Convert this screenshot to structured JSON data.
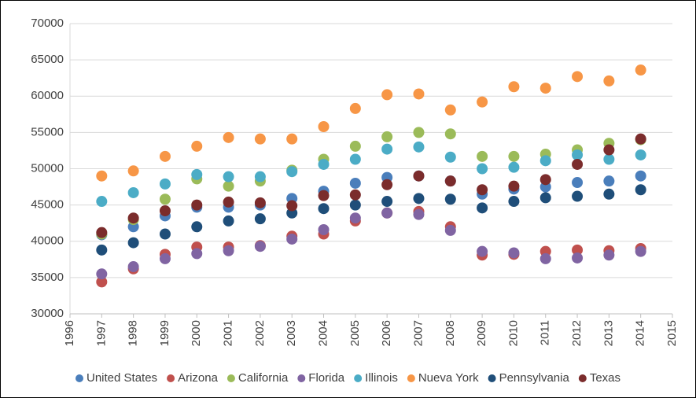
{
  "chart_data": {
    "type": "scatter",
    "x": [
      1997,
      1998,
      1999,
      2000,
      2001,
      2002,
      2003,
      2004,
      2005,
      2006,
      2007,
      2008,
      2009,
      2010,
      2011,
      2012,
      2013,
      2014
    ],
    "xlim": [
      1996,
      2015
    ],
    "xticks": [
      1996,
      1997,
      1998,
      1999,
      2000,
      2001,
      2002,
      2003,
      2004,
      2005,
      2006,
      2007,
      2008,
      2009,
      2010,
      2011,
      2012,
      2013,
      2014,
      2015
    ],
    "ylim": [
      30000,
      70000
    ],
    "yticks": [
      30000,
      35000,
      40000,
      45000,
      50000,
      55000,
      60000,
      65000,
      70000
    ],
    "grid": true,
    "legend": "bottom",
    "series": [
      {
        "name": "United States",
        "color": "#4a7ebb",
        "values": [
          40900,
          42000,
          43500,
          44700,
          44700,
          45000,
          45900,
          46900,
          48000,
          48800,
          49000,
          48300,
          46500,
          47200,
          47500,
          48100,
          48300,
          49000
        ]
      },
      {
        "name": "Arizona",
        "color": "#c0504d",
        "values": [
          34400,
          36200,
          38200,
          39200,
          39200,
          39400,
          40700,
          41000,
          42800,
          43900,
          44100,
          42000,
          38100,
          38200,
          38600,
          38800,
          38700,
          39000
        ]
      },
      {
        "name": "California",
        "color": "#9bbb59",
        "values": [
          41000,
          43000,
          45800,
          48600,
          47600,
          48300,
          49800,
          51300,
          53100,
          54400,
          55000,
          54800,
          51700,
          51700,
          52000,
          52600,
          53500,
          54000
        ]
      },
      {
        "name": "Florida",
        "color": "#8064a2",
        "values": [
          35500,
          36500,
          37600,
          38300,
          38700,
          39300,
          40300,
          41600,
          43200,
          43900,
          43700,
          41500,
          38600,
          38400,
          37600,
          37700,
          38100,
          38600
        ]
      },
      {
        "name": "Illinois",
        "color": "#4bacc6",
        "values": [
          45500,
          46700,
          47900,
          49200,
          48900,
          48900,
          49600,
          50600,
          51300,
          52700,
          53000,
          51600,
          50000,
          50200,
          51100,
          51900,
          51300,
          51900
        ]
      },
      {
        "name": "Nueva York",
        "color": "#f79646",
        "values": [
          49000,
          49700,
          51700,
          53100,
          54300,
          54100,
          54100,
          55800,
          58300,
          60200,
          60300,
          58100,
          59200,
          61300,
          61100,
          62700,
          62100,
          63600
        ]
      },
      {
        "name": "Pennsylvania",
        "color": "#1f4e79",
        "values": [
          38800,
          39800,
          41000,
          42000,
          42800,
          43100,
          43900,
          44500,
          45000,
          45500,
          45900,
          45800,
          44600,
          45500,
          46000,
          46200,
          46500,
          47100
        ]
      },
      {
        "name": "Texas",
        "color": "#7b2c2c",
        "values": [
          41200,
          43200,
          44200,
          45000,
          45400,
          45300,
          44900,
          46300,
          46400,
          47800,
          49000,
          48300,
          47100,
          47600,
          48500,
          50600,
          52600,
          54100
        ]
      }
    ]
  }
}
